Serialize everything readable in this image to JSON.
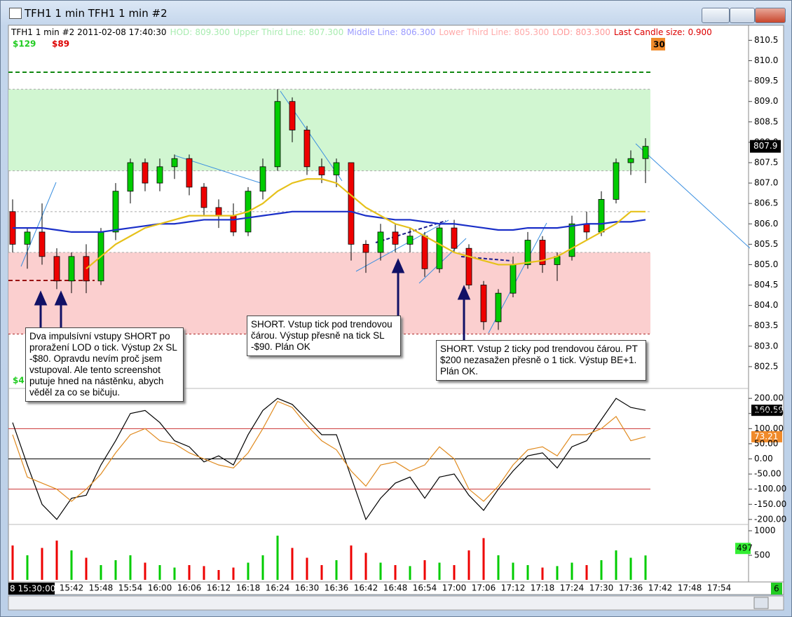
{
  "window": {
    "title": "TFH1 1 min  TFH1  1 min   #2"
  },
  "chart_data": [
    {
      "type": "candlestick",
      "info": [
        {
          "label": "TFH1  1 min   #2 2011-02-08 17:40:30",
          "color": "#000000"
        },
        {
          "label": "HOD:",
          "value": 809.3,
          "value_label": "809.300",
          "color": "#a8ecb0"
        },
        {
          "label": "Upper Third Line:",
          "value": 807.3,
          "value_label": "807.300",
          "color": "#a8ecb0"
        },
        {
          "label": "Middle Line:",
          "value": 806.3,
          "value_label": "806.300",
          "color": "#9a9aff"
        },
        {
          "label": "Lower Third Line:",
          "value": 805.3,
          "value_label": "805.300",
          "color": "#ffaaaa"
        },
        {
          "label": "LOD:",
          "value": 803.3,
          "value_label": "803.300",
          "color": "#ff9a9a"
        },
        {
          "label": "Last Candle size:",
          "value": 0.9,
          "value_label": "0.900",
          "color": "#dd0000"
        }
      ],
      "profit_labels": [
        {
          "label": "$129",
          "color": "#22cc22"
        },
        {
          "label": "$89",
          "color": "#dd0000"
        },
        {
          "label": "$4",
          "color": "#22cc22"
        }
      ],
      "bar_counter": "30",
      "last_price": {
        "value": 807.9,
        "label": "807.9"
      },
      "x": [
        "15:30",
        "15:33",
        "15:36",
        "15:39",
        "15:42",
        "15:45",
        "15:48",
        "15:51",
        "15:54",
        "15:57",
        "16:00",
        "16:03",
        "16:06",
        "16:09",
        "16:12",
        "16:15",
        "16:18",
        "16:21",
        "16:24",
        "16:27",
        "16:30",
        "16:33",
        "16:36",
        "16:39",
        "16:42",
        "16:45",
        "16:48",
        "16:51",
        "16:54",
        "16:57",
        "17:00",
        "17:03",
        "17:06",
        "17:09",
        "17:12",
        "17:15",
        "17:18",
        "17:21",
        "17:24",
        "17:27",
        "17:30",
        "17:33",
        "17:36",
        "17:39"
      ],
      "open": [
        806.3,
        805.5,
        805.8,
        805.2,
        804.6,
        805.2,
        804.6,
        805.8,
        806.8,
        807.5,
        807.0,
        807.4,
        807.6,
        806.9,
        806.4,
        806.2,
        805.8,
        806.8,
        807.4,
        809.0,
        808.3,
        807.4,
        807.2,
        807.5,
        805.5,
        805.3,
        805.8,
        805.5,
        805.7,
        804.9,
        805.9,
        805.4,
        804.5,
        803.6,
        804.3,
        805.0,
        805.6,
        805.0,
        805.2,
        806.0,
        805.8,
        806.6,
        807.5,
        807.6
      ],
      "high": [
        806.6,
        805.9,
        806.5,
        805.4,
        805.3,
        805.5,
        805.9,
        807.0,
        807.6,
        807.6,
        807.6,
        807.7,
        807.7,
        807.0,
        806.6,
        806.5,
        806.9,
        807.6,
        809.3,
        809.1,
        808.4,
        807.6,
        807.6,
        807.5,
        805.6,
        806.0,
        806.0,
        805.9,
        805.8,
        806.0,
        806.1,
        805.5,
        804.6,
        804.4,
        805.2,
        805.8,
        805.7,
        805.3,
        806.2,
        806.3,
        806.8,
        807.6,
        807.8,
        808.1
      ],
      "low": [
        805.3,
        804.9,
        805.0,
        804.4,
        804.3,
        804.3,
        804.5,
        805.6,
        806.5,
        806.8,
        806.8,
        807.1,
        806.7,
        806.2,
        805.9,
        805.7,
        805.7,
        806.6,
        807.3,
        808.0,
        807.2,
        807.0,
        806.9,
        805.1,
        804.8,
        805.1,
        805.3,
        805.3,
        804.7,
        804.8,
        805.3,
        804.4,
        803.4,
        803.4,
        804.2,
        804.9,
        804.8,
        804.6,
        805.1,
        805.6,
        805.7,
        806.5,
        807.2,
        807.0
      ],
      "close": [
        805.5,
        805.8,
        805.2,
        804.6,
        805.2,
        804.6,
        805.8,
        806.8,
        807.5,
        807.0,
        807.4,
        807.6,
        806.9,
        806.4,
        806.2,
        805.8,
        806.8,
        807.4,
        809.0,
        808.3,
        807.4,
        807.2,
        807.5,
        805.5,
        805.3,
        805.8,
        805.5,
        805.7,
        804.9,
        805.9,
        805.4,
        804.5,
        803.6,
        804.3,
        805.0,
        805.6,
        805.0,
        805.2,
        806.0,
        805.8,
        806.6,
        807.5,
        807.6,
        807.9
      ],
      "up_color": "#00cc00",
      "down_color": "#ee0000",
      "lines": [
        {
          "color": "#1a2fc8",
          "values": [
            805.9,
            805.9,
            805.9,
            805.85,
            805.8,
            805.8,
            805.8,
            805.85,
            805.9,
            805.95,
            806.0,
            806.0,
            806.05,
            806.1,
            806.1,
            806.1,
            806.15,
            806.2,
            806.25,
            806.3,
            806.3,
            806.3,
            806.3,
            806.3,
            806.2,
            806.15,
            806.1,
            806.1,
            806.05,
            806.0,
            806.0,
            805.95,
            805.9,
            805.85,
            805.85,
            805.9,
            805.9,
            805.9,
            805.95,
            806.0,
            806.0,
            806.05,
            806.05,
            806.1
          ]
        },
        {
          "color": "#e6c11a",
          "values": [
            null,
            null,
            null,
            null,
            null,
            804.9,
            805.2,
            805.5,
            805.7,
            805.9,
            806.0,
            806.1,
            806.2,
            806.2,
            806.2,
            806.2,
            806.3,
            806.5,
            806.8,
            807.0,
            807.1,
            807.1,
            807.0,
            806.7,
            806.4,
            806.2,
            806.0,
            805.9,
            805.7,
            805.5,
            805.3,
            805.2,
            805.1,
            805.0,
            805.0,
            805.05,
            805.1,
            805.2,
            805.4,
            805.6,
            805.8,
            806.0,
            806.3,
            806.3
          ]
        }
      ],
      "ylim": [
        802.0,
        810.8
      ],
      "yticks": [
        802.5,
        {
          "value": 803,
          "label": "803.0"
        },
        803.5,
        {
          "value": 804,
          "label": "804.0"
        },
        804.5,
        {
          "value": 805,
          "label": "805.0"
        },
        805.5,
        {
          "value": 806,
          "label": "806.0"
        },
        806.5,
        {
          "value": 807,
          "label": "807.0"
        },
        807.5,
        {
          "value": 808,
          "label": "808.0"
        },
        808.5,
        {
          "value": 809,
          "label": "809.0"
        },
        809.5,
        {
          "value": 810,
          "label": "810.0"
        },
        810.5
      ],
      "xticks": [
        "15:42",
        "15:48",
        "15:54",
        "16:00",
        "16:06",
        "16:12",
        "16:18",
        "16:24",
        "16:30",
        "16:36",
        "16:42",
        "16:48",
        "16:54",
        "17:00",
        "17:06",
        "17:12",
        "17:18",
        "17:24",
        "17:30",
        "17:36",
        "17:42",
        "17:48",
        "17:54"
      ],
      "x_start_label": "8  15:30:00",
      "annotations": [
        "Dva impulsívní vstupy SHORT po proražení LOD o tick. Výstup 2x SL -$80. Opravdu nevím proč jsem vstupoval. Ale tento screenshot putuje hned na nástěnku, abych věděl za co se bičuju.",
        "SHORT. Vstup tick pod trendovou čárou. Výstup přesně na tick SL -$90. Plán OK",
        "SHORT. Vstup 2 ticky pod trendovou čárou. PT $200 nezasažen přesně o 1 tick. Výstup BE+1. Plán OK."
      ]
    },
    {
      "type": "line",
      "series": [
        {
          "color": "#000000",
          "values": [
            120,
            -20,
            -150,
            -200,
            -130,
            -120,
            -20,
            60,
            150,
            160,
            120,
            60,
            40,
            -10,
            10,
            -20,
            80,
            160,
            200,
            180,
            130,
            80,
            80,
            -60,
            -200,
            -130,
            -80,
            -60,
            -130,
            -60,
            -50,
            -120,
            -170,
            -100,
            -40,
            10,
            20,
            -30,
            40,
            60,
            130,
            200,
            170,
            160.59
          ],
          "last_label": "160.59",
          "label_bg": "#000000"
        },
        {
          "color": "#e08a1e",
          "values": [
            80,
            -60,
            -80,
            -100,
            -140,
            -100,
            -50,
            20,
            80,
            100,
            60,
            50,
            20,
            0,
            -20,
            -30,
            20,
            100,
            190,
            170,
            110,
            60,
            30,
            -40,
            -90,
            -20,
            -10,
            -40,
            -20,
            40,
            0,
            -100,
            -140,
            -90,
            -20,
            30,
            40,
            10,
            80,
            80,
            100,
            140,
            60,
            73.21
          ],
          "last_label": "73.21",
          "label_bg": "#f08a2a"
        }
      ],
      "hlines": [
        {
          "value": 100,
          "color": "#cc3333"
        },
        {
          "value": -100,
          "color": "#cc3333"
        },
        {
          "value": 0,
          "color": "#000000"
        }
      ],
      "ylim": [
        -205,
        205
      ],
      "yticks": [
        {
          "value": 200,
          "label": "200.00"
        },
        {
          "value": 150,
          "label": "150.00"
        },
        {
          "value": 100,
          "label": "100.00"
        },
        {
          "value": 50,
          "label": "50.00"
        },
        {
          "value": 0,
          "label": "0.00"
        },
        {
          "value": -50,
          "label": "-50.00"
        },
        {
          "value": -100,
          "label": "-100.00"
        },
        {
          "value": -150,
          "label": "-150.00"
        },
        {
          "value": -200,
          "label": "-200.00"
        }
      ]
    },
    {
      "type": "volume",
      "values": [
        700,
        500,
        650,
        800,
        600,
        450,
        300,
        400,
        500,
        350,
        300,
        250,
        300,
        280,
        200,
        250,
        350,
        500,
        900,
        650,
        450,
        300,
        400,
        700,
        550,
        350,
        300,
        280,
        400,
        350,
        300,
        600,
        850,
        500,
        350,
        300,
        250,
        280,
        350,
        300,
        400,
        600,
        450,
        497
      ],
      "last_label": "497",
      "ylim": [
        0,
        1100
      ],
      "yticks": [
        500,
        1000
      ],
      "bar_count": "6"
    }
  ]
}
